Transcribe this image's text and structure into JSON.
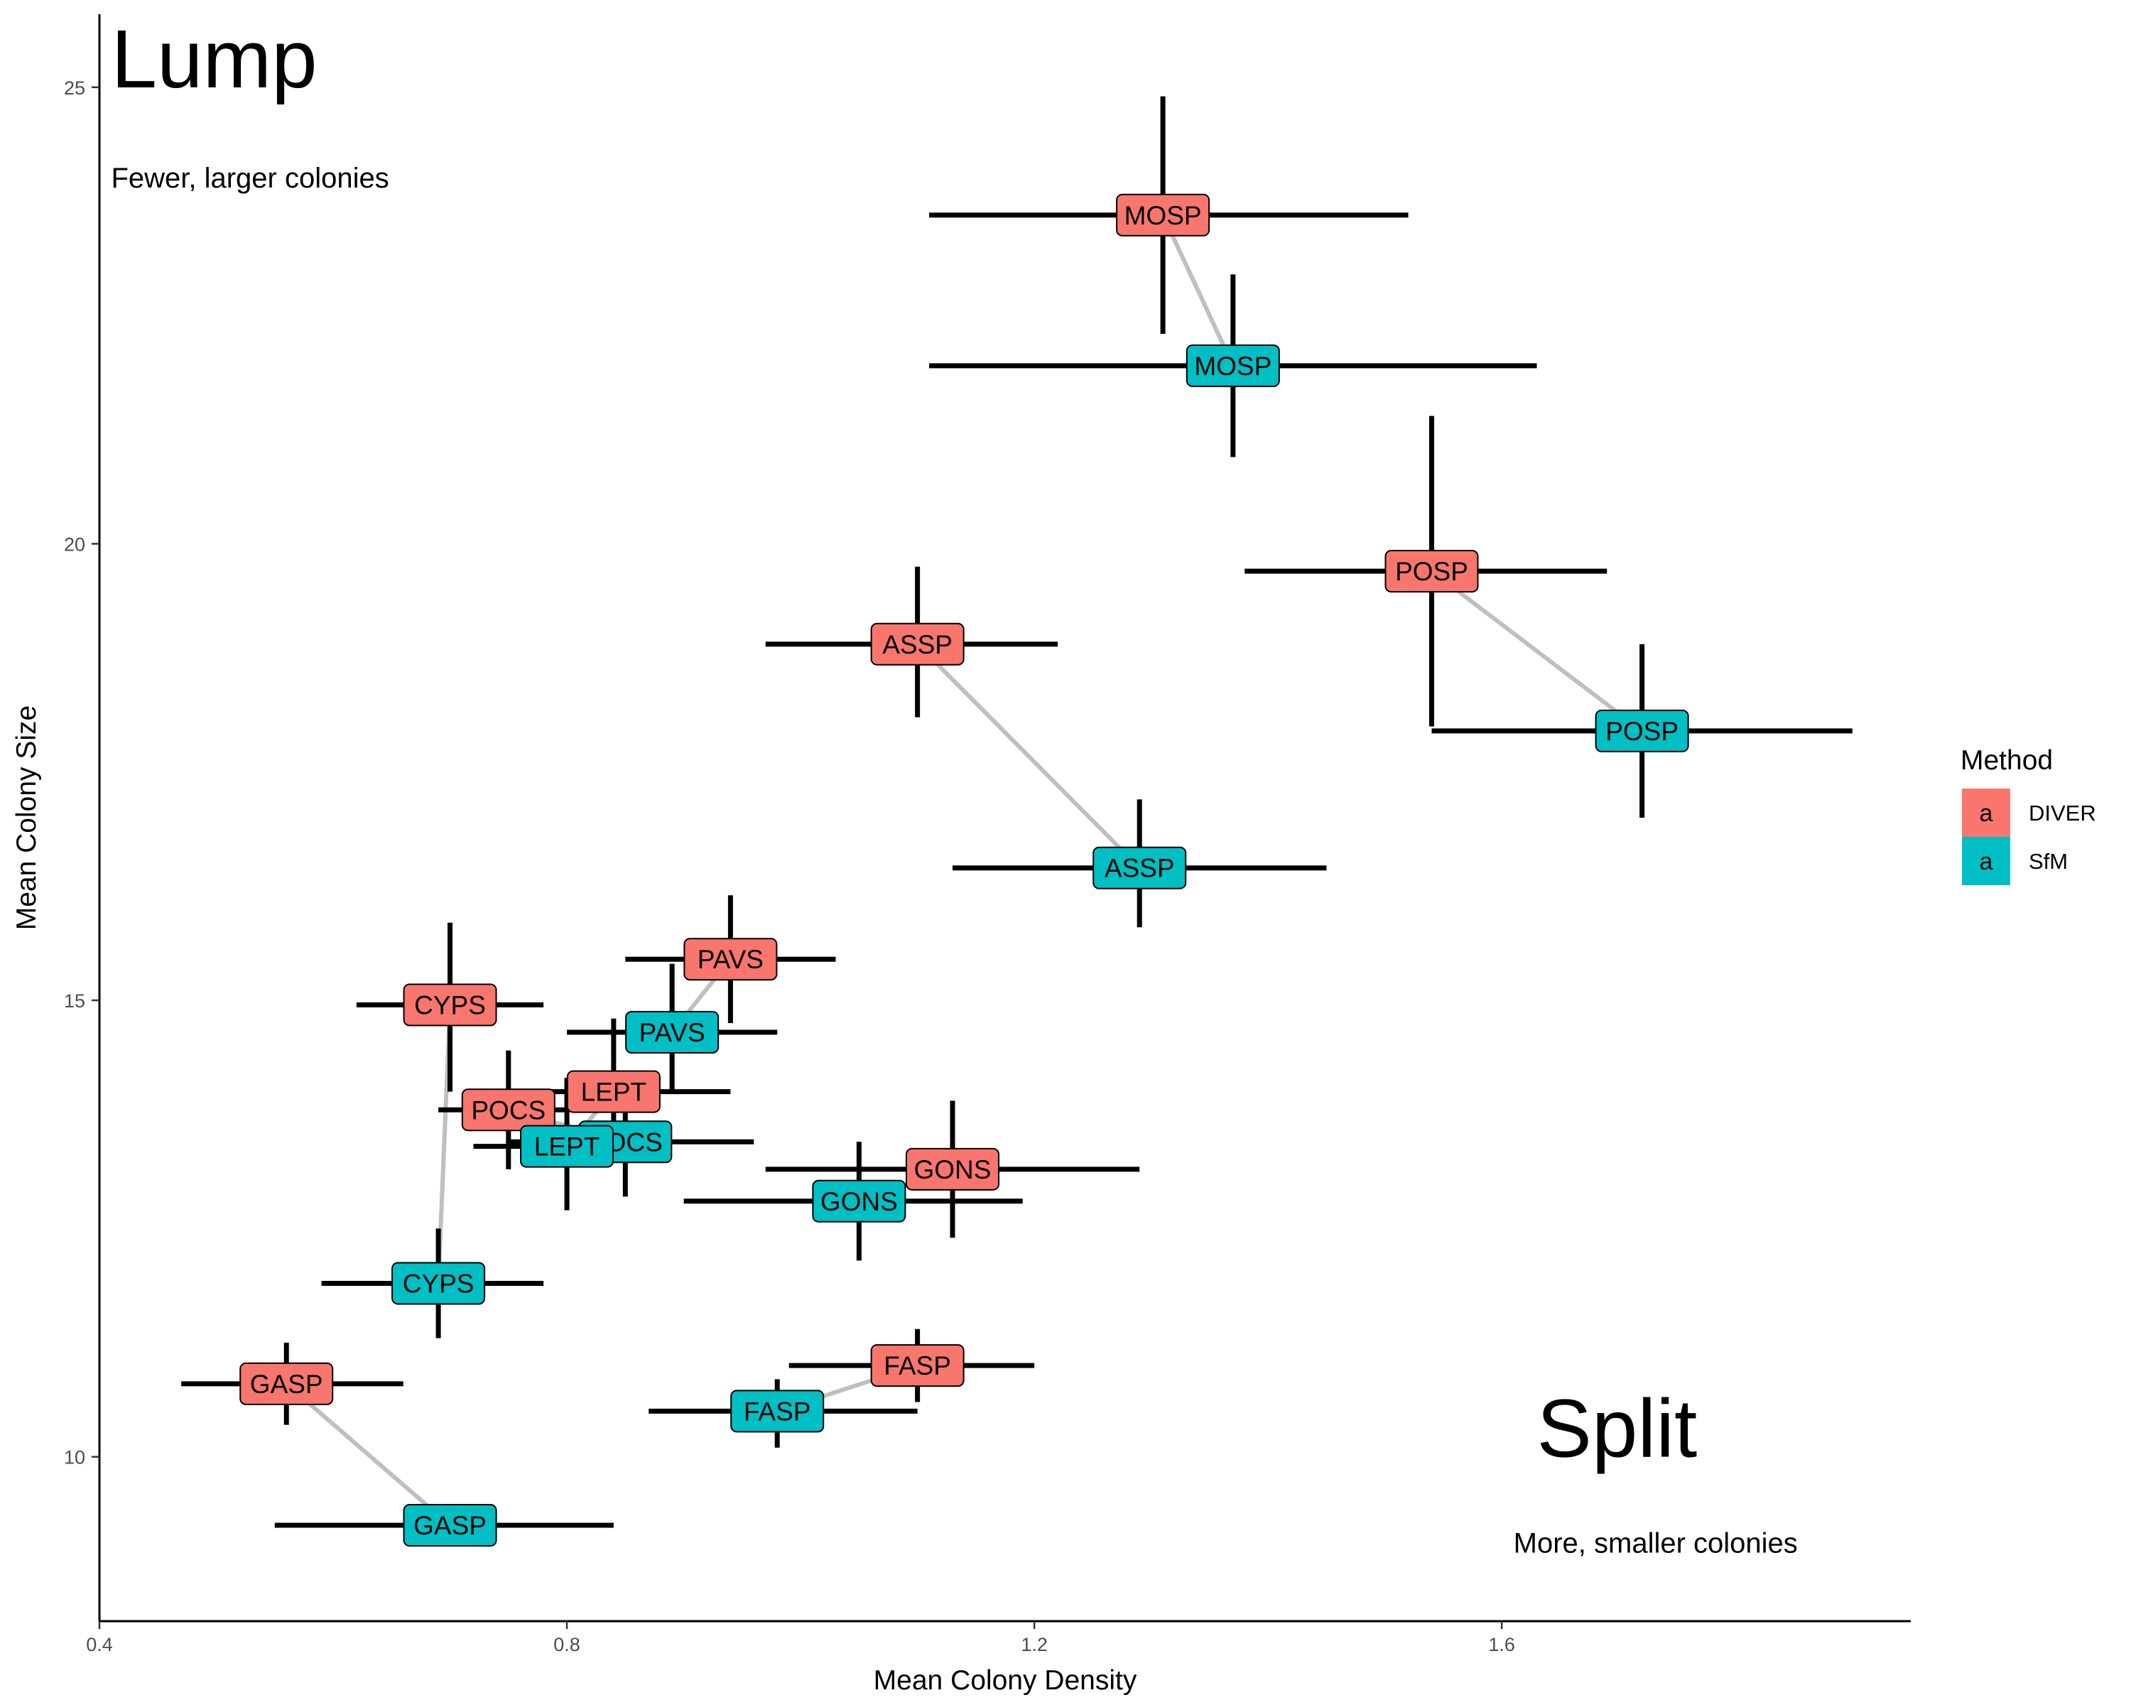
{
  "chart_data": {
    "type": "scatter",
    "xlabel": "Mean Colony Density",
    "ylabel": "Mean Colony Size",
    "xlim": [
      0.4,
      1.95
    ],
    "ylim": [
      8.2,
      25.8
    ],
    "x_ticks": [
      0.4,
      0.8,
      1.2,
      1.6
    ],
    "x_tick_labels": [
      "0.4",
      "0.8",
      "1.2",
      "1.6"
    ],
    "y_ticks": [
      10,
      15,
      20,
      25
    ],
    "y_tick_labels": [
      "10",
      "15",
      "20",
      "25"
    ],
    "grid": false,
    "legend": {
      "title": "Method",
      "placement": "right",
      "key_glyph": "a",
      "entries": [
        {
          "name": "DIVER",
          "color": "#F8766D"
        },
        {
          "name": "SfM",
          "color": "#00BFC4"
        }
      ]
    },
    "annotations": [
      {
        "text": "Lump",
        "x": 0.41,
        "y": 25.0,
        "size": "large"
      },
      {
        "text": "Fewer, larger colonies",
        "x": 0.41,
        "y": 23.9,
        "size": "small"
      },
      {
        "text": "Split",
        "x": 1.63,
        "y": 10.0,
        "size": "large"
      },
      {
        "text": "More, smaller colonies",
        "x": 1.61,
        "y": 8.95,
        "size": "small"
      }
    ],
    "series": [
      {
        "name": "DIVER",
        "color": "#F8766D",
        "points": [
          {
            "label": "MOSP",
            "x": 1.31,
            "y": 23.6,
            "xmin": 1.11,
            "xmax": 1.52,
            "ymin": 22.3,
            "ymax": 24.9
          },
          {
            "label": "POSP",
            "x": 1.54,
            "y": 19.7,
            "xmin": 1.38,
            "xmax": 1.69,
            "ymin": 18.0,
            "ymax": 21.4
          },
          {
            "label": "ASSP",
            "x": 1.1,
            "y": 18.9,
            "xmin": 0.97,
            "xmax": 1.22,
            "ymin": 18.1,
            "ymax": 19.75
          },
          {
            "label": "PAVS",
            "x": 0.94,
            "y": 15.45,
            "xmin": 0.85,
            "xmax": 1.03,
            "ymin": 14.75,
            "ymax": 16.15
          },
          {
            "label": "CYPS",
            "x": 0.7,
            "y": 14.95,
            "xmin": 0.62,
            "xmax": 0.78,
            "ymin": 14.0,
            "ymax": 15.85
          },
          {
            "label": "LEPT",
            "x": 0.84,
            "y": 14.0,
            "xmin": 0.75,
            "xmax": 0.94,
            "ymin": 13.3,
            "ymax": 14.8
          },
          {
            "label": "POCS",
            "x": 0.75,
            "y": 13.8,
            "xmin": 0.69,
            "xmax": 0.8,
            "ymin": 13.15,
            "ymax": 14.45
          },
          {
            "label": "GONS",
            "x": 1.13,
            "y": 13.15,
            "xmin": 0.97,
            "xmax": 1.29,
            "ymin": 12.4,
            "ymax": 13.9
          },
          {
            "label": "FASP",
            "x": 1.1,
            "y": 11.0,
            "xmin": 0.99,
            "xmax": 1.2,
            "ymin": 10.6,
            "ymax": 11.4
          },
          {
            "label": "GASP",
            "x": 0.56,
            "y": 10.8,
            "xmin": 0.47,
            "xmax": 0.66,
            "ymin": 10.35,
            "ymax": 11.25
          }
        ]
      },
      {
        "name": "SfM",
        "color": "#00BFC4",
        "points": [
          {
            "label": "MOSP",
            "x": 1.37,
            "y": 21.95,
            "xmin": 1.11,
            "xmax": 1.63,
            "ymin": 20.95,
            "ymax": 22.95
          },
          {
            "label": "POSP",
            "x": 1.72,
            "y": 17.95,
            "xmin": 1.54,
            "xmax": 1.9,
            "ymin": 17.0,
            "ymax": 18.9
          },
          {
            "label": "ASSP",
            "x": 1.29,
            "y": 16.45,
            "xmin": 1.13,
            "xmax": 1.45,
            "ymin": 15.8,
            "ymax": 17.2
          },
          {
            "label": "PAVS",
            "x": 0.89,
            "y": 14.65,
            "xmin": 0.8,
            "xmax": 0.98,
            "ymin": 14.0,
            "ymax": 15.4
          },
          {
            "label": "POCS",
            "x": 0.85,
            "y": 13.45,
            "xmin": 0.75,
            "xmax": 0.96,
            "ymin": 12.85,
            "ymax": 14.05
          },
          {
            "label": "LEPT",
            "x": 0.8,
            "y": 13.4,
            "xmin": 0.72,
            "xmax": 0.88,
            "ymin": 12.7,
            "ymax": 14.15
          },
          {
            "label": "GONS",
            "x": 1.05,
            "y": 12.8,
            "xmin": 0.9,
            "xmax": 1.19,
            "ymin": 12.15,
            "ymax": 13.45
          },
          {
            "label": "CYPS",
            "x": 0.69,
            "y": 11.9,
            "xmin": 0.59,
            "xmax": 0.78,
            "ymin": 11.3,
            "ymax": 12.5
          },
          {
            "label": "FASP",
            "x": 0.98,
            "y": 10.5,
            "xmin": 0.87,
            "xmax": 1.1,
            "ymin": 10.1,
            "ymax": 10.85
          },
          {
            "label": "GASP",
            "x": 0.7,
            "y": 9.25,
            "xmin": 0.55,
            "xmax": 0.84,
            "ymin": 9.25,
            "ymax": 9.25
          }
        ]
      }
    ]
  }
}
